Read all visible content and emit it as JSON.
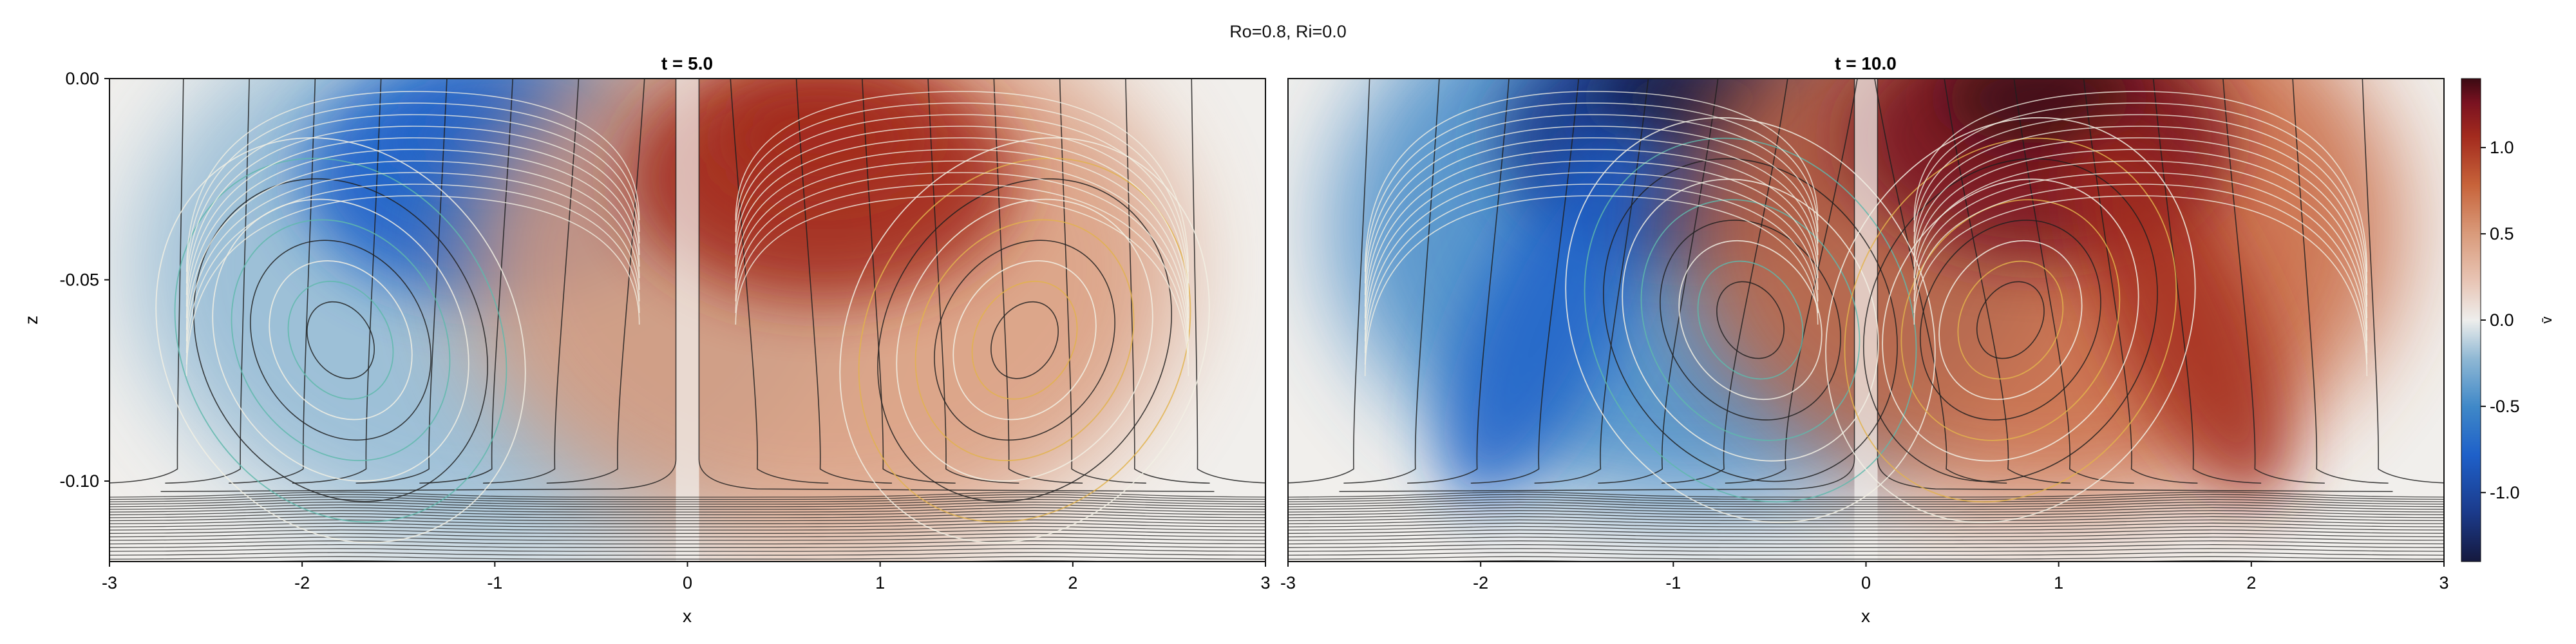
{
  "figure": {
    "suptitle": "Ro=0.8, Ri=0.0"
  },
  "colors": {
    "colormap_balance": [
      "#15193e",
      "#1b3a8a",
      "#1e60c9",
      "#3f88c8",
      "#8fb8d4",
      "#e9eaea",
      "#f1f1ef",
      "#e8c5b5",
      "#d99a7a",
      "#c7633a",
      "#a32b1e",
      "#7a1221",
      "#3b0a12"
    ],
    "contour_dark": "#1e1e1e",
    "contour_light": "#f2f0e4",
    "contour_teal": "#5fb8ac",
    "contour_gold": "#e2b34c"
  },
  "chart_data": [
    {
      "type": "heatmap",
      "title": "t = 5.0",
      "xlabel": "x",
      "ylabel": "z",
      "xlim": [
        -3,
        3
      ],
      "ylim": [
        -0.12,
        0.0
      ],
      "x_ticks": [
        "-3",
        "-2",
        "-1",
        "0",
        "1",
        "2",
        "3"
      ],
      "x_tick_values": [
        -3,
        -2,
        -1,
        0,
        1,
        2,
        3
      ],
      "y_ticks": [
        "0.00",
        "-0.05",
        "-0.10"
      ],
      "y_tick_values": [
        0.0,
        -0.05,
        -0.1
      ],
      "field": {
        "description_of_extrema": "negative lobe (blue) centered near x=-1, z=-0.015; positive lobe (red) centered near x=0.7, z=-0.015",
        "lobes": [
          {
            "x": -1.0,
            "z": -0.015,
            "value": -1.0
          },
          {
            "x": 0.7,
            "z": -0.015,
            "value": 1.0
          }
        ]
      },
      "overlay_contours": [
        {
          "style": "closed eddy",
          "x": -1.8,
          "z": -0.065,
          "tilt": "left-leaning"
        },
        {
          "style": "closed eddy",
          "x": 1.75,
          "z": -0.065,
          "tilt": "right-leaning"
        }
      ]
    },
    {
      "type": "heatmap",
      "title": "t = 10.0",
      "xlabel": "x",
      "ylabel": "",
      "xlim": [
        -3,
        3
      ],
      "ylim": [
        -0.12,
        0.0
      ],
      "x_ticks": [
        "-3",
        "-2",
        "-1",
        "0",
        "1",
        "2",
        "3"
      ],
      "x_tick_values": [
        -3,
        -2,
        -1,
        0,
        1,
        2,
        3
      ],
      "field": {
        "description_of_extrema": "negative lobe (blue) near x=-0.9, z=0.0 tilting down-left; positive lobe (red) near x=0.9, z=0.0 tilting down-right",
        "lobes": [
          {
            "x": -0.9,
            "z": -0.005,
            "value": -1.3
          },
          {
            "x": 0.9,
            "z": -0.005,
            "value": 1.4
          }
        ]
      },
      "overlay_contours": [
        {
          "style": "closed eddy",
          "x": -0.6,
          "z": -0.06,
          "tilt": "left-leaning"
        },
        {
          "style": "closed eddy",
          "x": 0.75,
          "z": -0.06,
          "tilt": "right-leaning"
        }
      ]
    }
  ],
  "colorbar": {
    "label": "v̄",
    "ticks": [
      "1.0",
      "0.5",
      "0.0",
      "-0.5",
      "-1.0"
    ],
    "tick_values": [
      1.0,
      0.5,
      0.0,
      -0.5,
      -1.0
    ],
    "range": [
      -1.4,
      1.4
    ]
  }
}
